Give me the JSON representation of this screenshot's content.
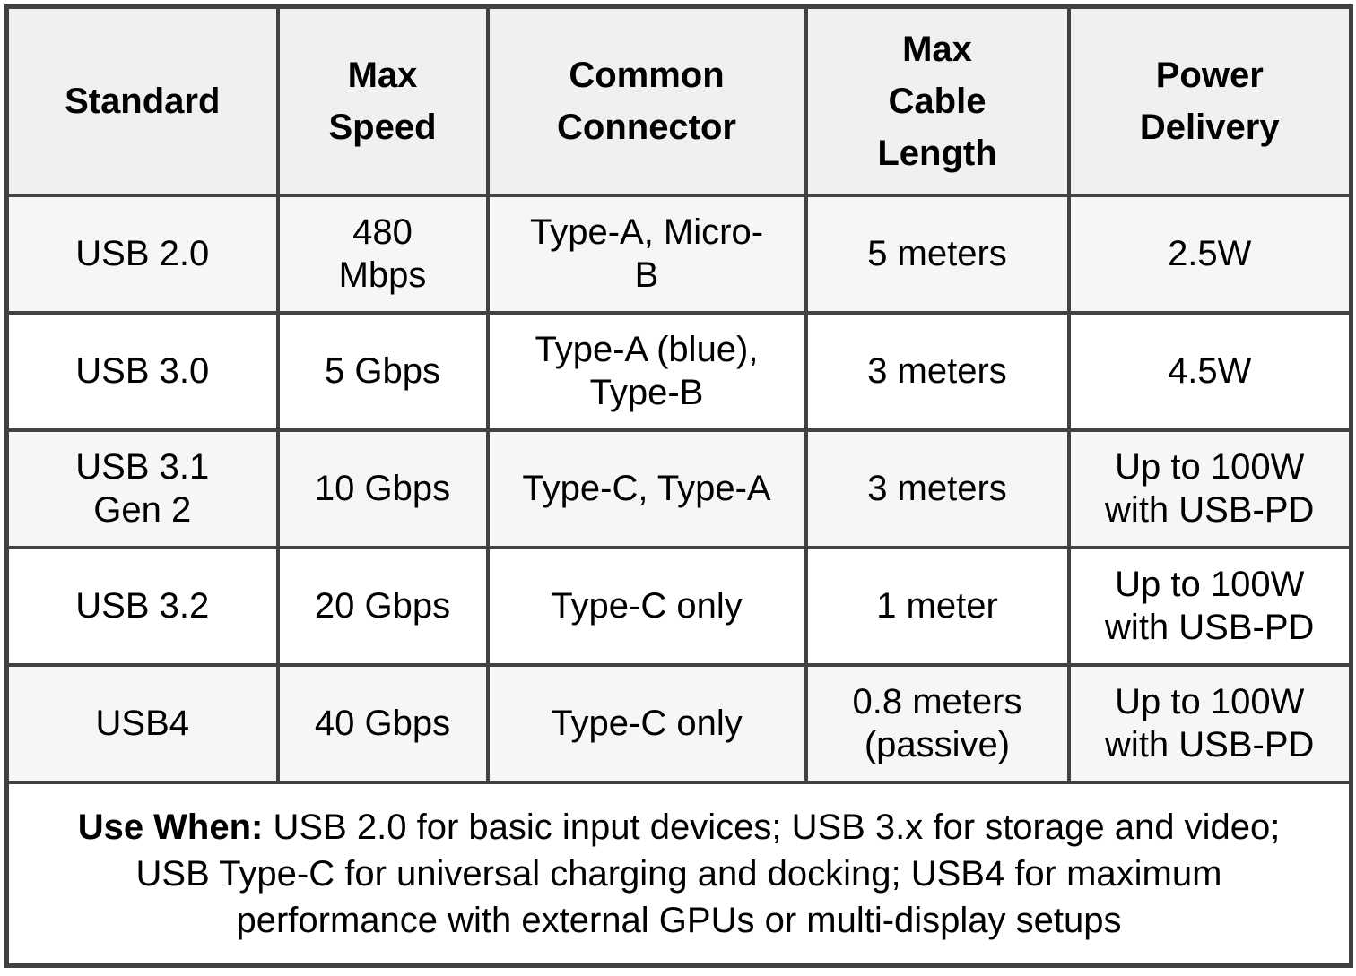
{
  "colors": {
    "border": "#424242",
    "header_bg": "#f0f0f0",
    "row_alt_bg": "#f6f6f6",
    "row_bg": "#ffffff",
    "text": "#000000"
  },
  "chart_data": {
    "type": "table",
    "title": "USB standards comparison table",
    "columns": [
      "Standard",
      "Max\nSpeed",
      "Common\nConnector",
      "Max\nCable\nLength",
      "Power\nDelivery"
    ],
    "rows": [
      [
        "USB 2.0",
        "480\nMbps",
        "Type-A, Micro-\nB",
        "5 meters",
        "2.5W"
      ],
      [
        "USB 3.0",
        "5 Gbps",
        "Type-A (blue),\nType-B",
        "3 meters",
        "4.5W"
      ],
      [
        "USB 3.1\nGen 2",
        "10 Gbps",
        "Type-C, Type-A",
        "3 meters",
        "Up to 100W\nwith USB-PD"
      ],
      [
        "USB 3.2",
        "20 Gbps",
        "Type-C only",
        "1 meter",
        "Up to 100W\nwith USB-PD"
      ],
      [
        "USB4",
        "40 Gbps",
        "Type-C only",
        "0.8 meters\n(passive)",
        "Up to 100W\nwith USB-PD"
      ]
    ],
    "footer": {
      "label": "Use When:",
      "text": "USB 2.0 for basic input devices; USB 3.x for storage and video; USB Type-C for universal charging and docking; USB4 for maximum performance with external GPUs or multi-display setups"
    },
    "layout_hints": {
      "grid": "all-borders",
      "header_row": true,
      "footer_note_row_colspan": 5,
      "alternating_row_shading": true
    }
  }
}
